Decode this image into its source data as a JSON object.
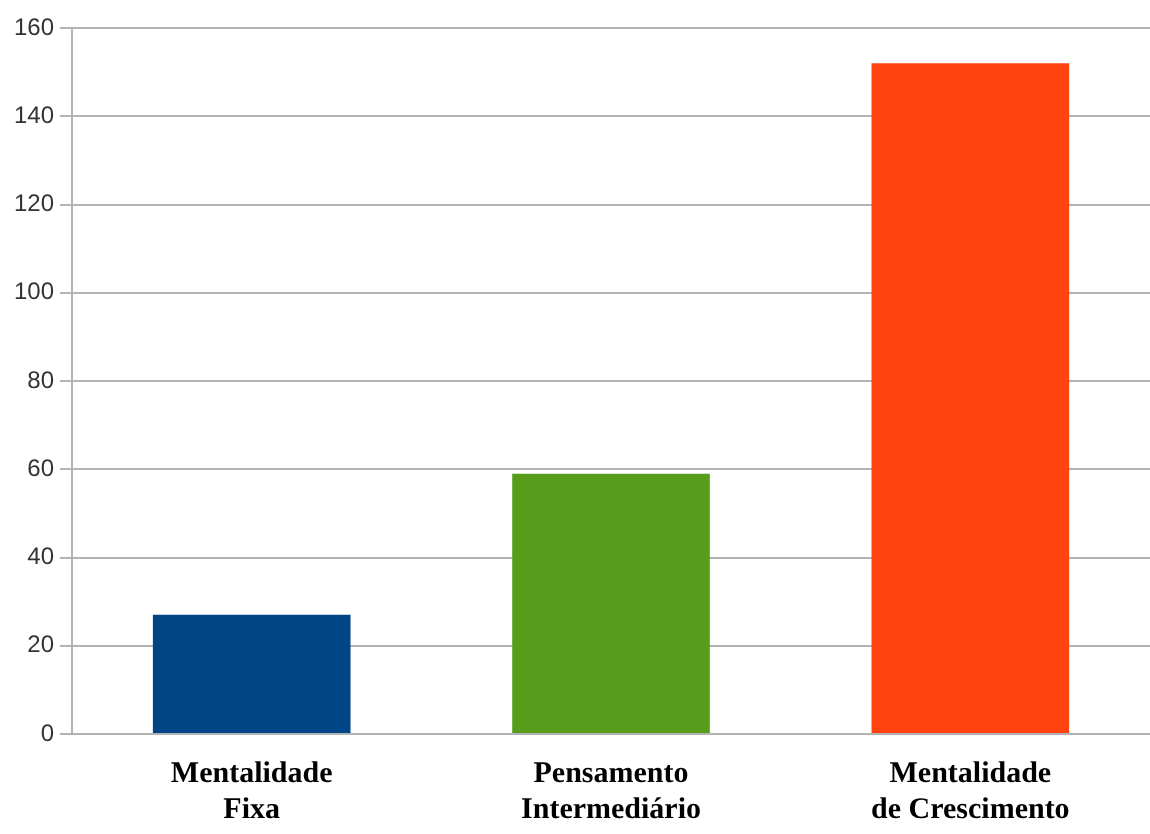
{
  "chart_data": {
    "type": "bar",
    "categories": [
      "Mentalidade Fixa",
      "Pensamento Intermediário",
      "Mentalidade de Crescimento"
    ],
    "values": [
      27,
      59,
      152
    ],
    "colors": [
      "#004586",
      "#579d1c",
      "#ff420e"
    ],
    "ylim": [
      0,
      160
    ],
    "yticks": [
      0,
      20,
      40,
      60,
      80,
      100,
      120,
      140,
      160
    ],
    "grid": "y"
  }
}
